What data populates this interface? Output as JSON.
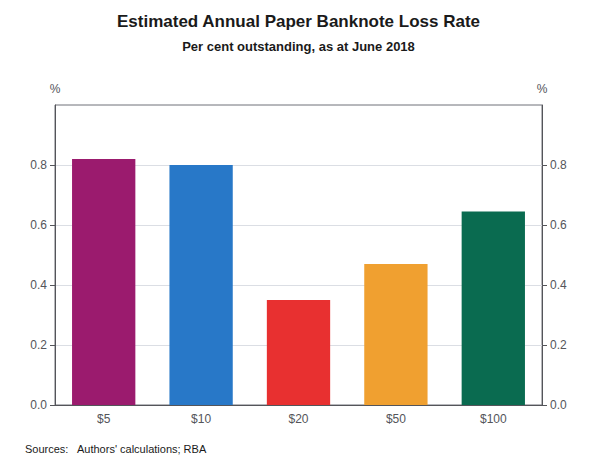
{
  "chart_data": {
    "type": "bar",
    "title": "Estimated Annual Paper Banknote Loss Rate",
    "subtitle": "Per cent outstanding, as at June 2018",
    "categories": [
      "$5",
      "$10",
      "$20",
      "$50",
      "$100"
    ],
    "values": [
      0.82,
      0.8,
      0.35,
      0.47,
      0.645
    ],
    "colors": [
      "#9B1B6E",
      "#2878C8",
      "#E83030",
      "#F0A030",
      "#0A6B50"
    ],
    "ylabel": "%",
    "y2label": "%",
    "ylim": [
      0.0,
      1.0
    ],
    "yticks": [
      {
        "value": 0.0,
        "label": "0.0"
      },
      0.2,
      0.4,
      0.6,
      0.8
    ],
    "y2lim": [
      0.0,
      1.0
    ],
    "y2ticks": [
      {
        "value": 0.0,
        "label": "0.0"
      },
      0.2,
      0.4,
      0.6,
      0.8
    ],
    "grid": true,
    "source": "Sources:   Authors' calculations; RBA"
  }
}
